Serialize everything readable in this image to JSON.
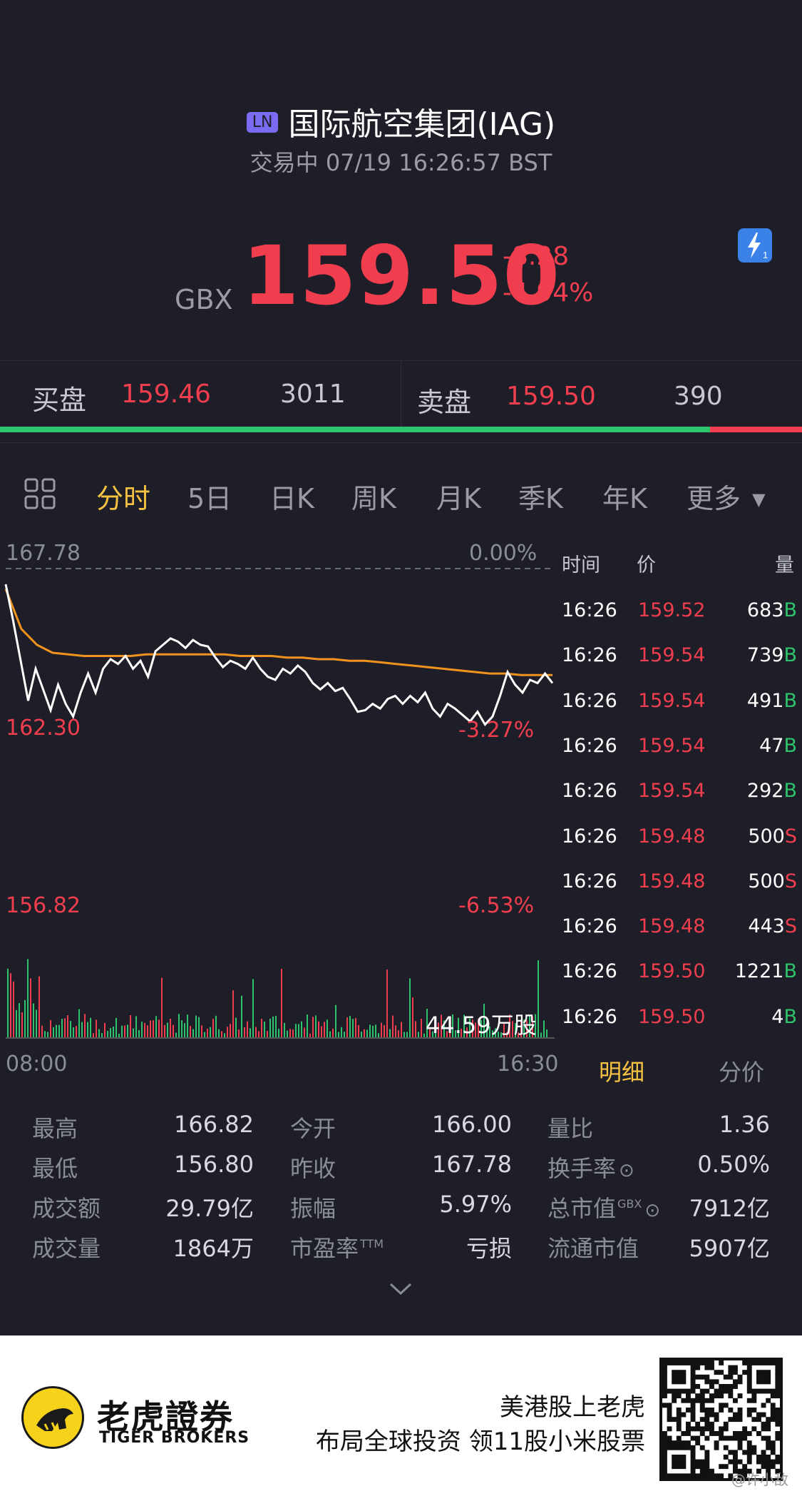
{
  "header": {
    "market_badge": "LN",
    "title": "国际航空集团(IAG)",
    "status": "交易中 07/19 16:26:57 BST",
    "currency": "GBX",
    "price": "159.50",
    "change_abs": "-8.28",
    "change_pct": "-4.94%",
    "lightning_icon": "lightning-badge-icon",
    "lightning_count": "1"
  },
  "orderbook": {
    "bid_label": "买盘",
    "bid_price": "159.46",
    "bid_volume": "3011",
    "ask_label": "卖盘",
    "ask_price": "159.50",
    "ask_volume": "390",
    "bid_ratio": 0.885
  },
  "tabs": {
    "grid_icon": "grid-icon",
    "items": [
      "分时",
      "5日",
      "日K",
      "周K",
      "月K",
      "季K",
      "年K",
      "更多"
    ],
    "active": "分时"
  },
  "chart": {
    "prev_close_label": "167.78",
    "prev_close_pct": "0.00%",
    "mid_label": "162.30",
    "mid_pct": "-3.27%",
    "low_label": "156.82",
    "low_pct": "-6.53%",
    "volume_label": "44.59万股",
    "time_start": "08:00",
    "time_end": "16:30",
    "colors": {
      "price_line": "#ffffff",
      "avg_line": "#f0921e",
      "up": "#f03e4e",
      "down": "#2ec46b"
    }
  },
  "chart_data": {
    "type": "line",
    "title": "",
    "xlabel": "",
    "ylabel": "",
    "x_range": [
      "08:00",
      "16:30"
    ],
    "ylim": [
      156.82,
      167.78
    ],
    "series": [
      {
        "name": "",
        "values": [
          166.8,
          164.5,
          162.0,
          159.5,
          161.5,
          160.2,
          158.9,
          160.5,
          159.3,
          158.5,
          160.0,
          161.2,
          160.0,
          161.5,
          162.1,
          161.8,
          162.3,
          161.5,
          162.0,
          161.0,
          162.6,
          163.0,
          163.4,
          163.2,
          162.8,
          163.3,
          163.0,
          162.9,
          162.2,
          161.6,
          162.0,
          161.8,
          161.5,
          162.2,
          161.5,
          161.0,
          160.8,
          161.5,
          161.2,
          161.7,
          161.3,
          160.6,
          160.2,
          160.6,
          160.1,
          160.3,
          159.6,
          158.8,
          158.9,
          159.3,
          159.0,
          159.6,
          159.8,
          159.3,
          159.8,
          159.4,
          160.0,
          159.0,
          158.5,
          159.3,
          159.0,
          158.6,
          158.2,
          158.8,
          158.0,
          158.5,
          159.8,
          161.3,
          160.5,
          160.0,
          160.8,
          160.6,
          161.2,
          160.6
        ]
      },
      {
        "name": "",
        "values": [
          166.5,
          164.0,
          163.0,
          162.5,
          162.4,
          162.3,
          162.3,
          162.3,
          162.3,
          162.4,
          162.4,
          162.4,
          162.4,
          162.4,
          162.4,
          162.3,
          162.3,
          162.3,
          162.2,
          162.2,
          162.1,
          162.1,
          162.0,
          162.0,
          161.9,
          161.8,
          161.7,
          161.6,
          161.5,
          161.4,
          161.3,
          161.2,
          161.2,
          161.1,
          161.1,
          161.1
        ]
      }
    ]
  },
  "trades": {
    "headers": [
      "时间",
      "价",
      "量"
    ],
    "rows": [
      {
        "time": "16:26",
        "price": "159.52",
        "vol": "683",
        "side": "B"
      },
      {
        "time": "16:26",
        "price": "159.54",
        "vol": "739",
        "side": "B"
      },
      {
        "time": "16:26",
        "price": "159.54",
        "vol": "491",
        "side": "B"
      },
      {
        "time": "16:26",
        "price": "159.54",
        "vol": "47",
        "side": "B"
      },
      {
        "time": "16:26",
        "price": "159.54",
        "vol": "292",
        "side": "B"
      },
      {
        "time": "16:26",
        "price": "159.48",
        "vol": "500",
        "side": "S"
      },
      {
        "time": "16:26",
        "price": "159.48",
        "vol": "500",
        "side": "S"
      },
      {
        "time": "16:26",
        "price": "159.48",
        "vol": "443",
        "side": "S"
      },
      {
        "time": "16:26",
        "price": "159.50",
        "vol": "1221",
        "side": "B"
      },
      {
        "time": "16:26",
        "price": "159.50",
        "vol": "4",
        "side": "B"
      }
    ],
    "tab_detail": "明细",
    "tab_price": "分价"
  },
  "stats": {
    "col1": [
      {
        "label": "最高",
        "value": "166.82"
      },
      {
        "label": "最低",
        "value": "156.80"
      },
      {
        "label": "成交额",
        "value": "29.79亿"
      },
      {
        "label": "成交量",
        "value": "1864万"
      }
    ],
    "col2": [
      {
        "label": "今开",
        "value": "166.00"
      },
      {
        "label": "昨收",
        "value": "167.78"
      },
      {
        "label": "振幅",
        "value": "5.97%"
      },
      {
        "label": "市盈率",
        "sup": "TTM",
        "value": "亏损"
      }
    ],
    "col3": [
      {
        "label": "量比",
        "value": "1.36"
      },
      {
        "label": "换手率",
        "value": "0.50%"
      },
      {
        "label": "总市值",
        "sup": "GBX",
        "value": "7912亿"
      },
      {
        "label": "流通市值",
        "value": "5907亿"
      }
    ]
  },
  "footer": {
    "logo_cn": "老虎證券",
    "logo_en": "TIGER BROKERS",
    "slogan1": "美港股上老虎",
    "slogan2": "布局全球投资 领11股小米股票",
    "qr_icon": "qr-code-icon",
    "watermark": "@许小敌"
  }
}
